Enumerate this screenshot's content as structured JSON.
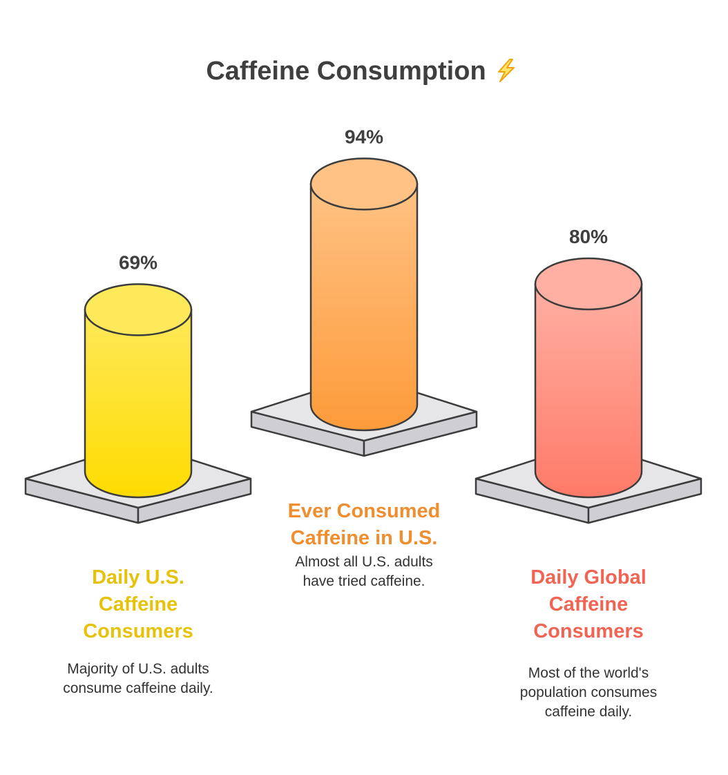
{
  "title": "Caffeine Consumption",
  "title_icon": "lightning-bolt-icon",
  "colors": {
    "text": "#3f3f3f",
    "outline": "#3c3c3c",
    "pedestal_top": "#e6e6e8",
    "pedestal_side": "#cfcfd3"
  },
  "chart_data": {
    "type": "bar",
    "style": "3d-cylinder-on-pedestal",
    "unit": "%",
    "categories": [
      "Daily U.S. Caffeine Consumers",
      "Ever Consumed Caffeine in U.S.",
      "Daily Global Caffeine Consumers"
    ],
    "values": [
      69,
      94,
      80
    ],
    "value_labels": [
      "69%",
      "94%",
      "80%"
    ],
    "items": [
      {
        "value": 69,
        "value_label": "69%",
        "label_lines": [
          "Daily U.S.",
          "Caffeine",
          "Consumers"
        ],
        "desc_lines": [
          "Majority of U.S. adults",
          "consume caffeine daily."
        ],
        "color_top": "#fee95a",
        "color_bottom": "#fedc00",
        "label_color": "#e6c20a"
      },
      {
        "value": 94,
        "value_label": "94%",
        "label_lines": [
          "Ever Consumed",
          "Caffeine in U.S."
        ],
        "desc_lines": [
          "Almost all U.S. adults",
          "have tried caffeine."
        ],
        "color_top": "#ffc284",
        "color_bottom": "#fd9b3a",
        "label_color": "#f08e2f"
      },
      {
        "value": 80,
        "value_label": "80%",
        "label_lines": [
          "Daily Global",
          "Caffeine",
          "Consumers"
        ],
        "desc_lines": [
          "Most of the world's",
          "population consumes",
          "caffeine daily."
        ],
        "color_top": "#ffb0a3",
        "color_bottom": "#ff7a68",
        "label_color": "#f16454"
      }
    ]
  }
}
